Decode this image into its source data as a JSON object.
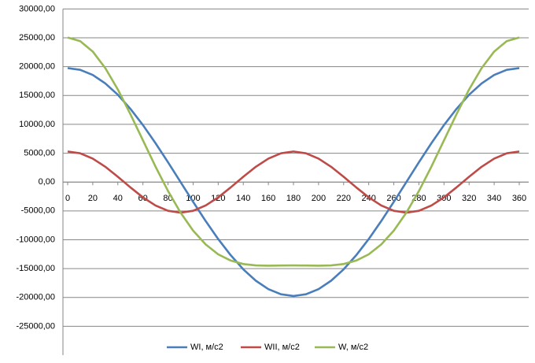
{
  "chart_data": {
    "type": "line",
    "x": [
      0,
      10,
      20,
      30,
      40,
      50,
      60,
      70,
      80,
      90,
      100,
      110,
      120,
      130,
      140,
      150,
      160,
      170,
      180,
      190,
      200,
      210,
      220,
      230,
      240,
      250,
      260,
      270,
      280,
      290,
      300,
      310,
      320,
      330,
      340,
      350,
      360
    ],
    "xlim": [
      0,
      360
    ],
    "xticks": [
      0,
      20,
      40,
      60,
      80,
      100,
      120,
      140,
      160,
      180,
      200,
      220,
      240,
      260,
      280,
      300,
      320,
      340,
      360
    ],
    "ylim": [
      -30000,
      30000
    ],
    "yticks": [
      {
        "value": -25000,
        "label": "-25000,00"
      },
      {
        "value": -20000,
        "label": "-20000,00"
      },
      {
        "value": -15000,
        "label": "-15000,00"
      },
      {
        "value": -10000,
        "label": "-10000,00"
      },
      {
        "value": -5000,
        "label": "-5000,00"
      },
      {
        "value": 0,
        "label": "0,00"
      },
      {
        "value": 5000,
        "label": "5000,00"
      },
      {
        "value": 10000,
        "label": "10000,00"
      },
      {
        "value": 15000,
        "label": "15000,00"
      },
      {
        "value": 20000,
        "label": "20000,00"
      },
      {
        "value": 25000,
        "label": "25000,00"
      },
      {
        "value": 30000,
        "label": "30000,00"
      }
    ],
    "grid": true,
    "legend": "bottom",
    "series": [
      {
        "name": "WI, м/с2",
        "color": "#4a7ebb",
        "values": [
          19750,
          19450,
          18560,
          17100,
          15130,
          12690,
          9880,
          6750,
          3430,
          0,
          -3430,
          -6750,
          -9880,
          -12690,
          -15130,
          -17100,
          -18560,
          -19450,
          -19750,
          -19450,
          -18560,
          -17100,
          -15130,
          -12690,
          -9880,
          -6750,
          -3430,
          0,
          3430,
          6750,
          9880,
          12690,
          15130,
          17100,
          18560,
          19450,
          19750
        ]
      },
      {
        "name": "WII, м/с2",
        "color": "#be4b48",
        "values": [
          5300,
          4980,
          4060,
          2650,
          920,
          -920,
          -2650,
          -4060,
          -4980,
          -5300,
          -4980,
          -4060,
          -2650,
          -920,
          920,
          2650,
          4060,
          4980,
          5300,
          4980,
          4060,
          2650,
          920,
          -920,
          -2650,
          -4060,
          -4980,
          -5300,
          -4980,
          -4060,
          -2650,
          -920,
          920,
          2650,
          4060,
          4980,
          5300
        ]
      },
      {
        "name": "W, м/с2",
        "color": "#98b954",
        "values": [
          25050,
          24430,
          22620,
          19750,
          16050,
          11770,
          7230,
          2690,
          -1550,
          -5300,
          -8410,
          -10810,
          -12530,
          -13610,
          -14210,
          -14450,
          -14500,
          -14470,
          -14450,
          -14470,
          -14500,
          -14450,
          -14210,
          -13610,
          -12530,
          -10810,
          -8410,
          -5300,
          -1550,
          2690,
          7230,
          11770,
          16050,
          19750,
          22620,
          24430,
          25050
        ]
      }
    ]
  }
}
